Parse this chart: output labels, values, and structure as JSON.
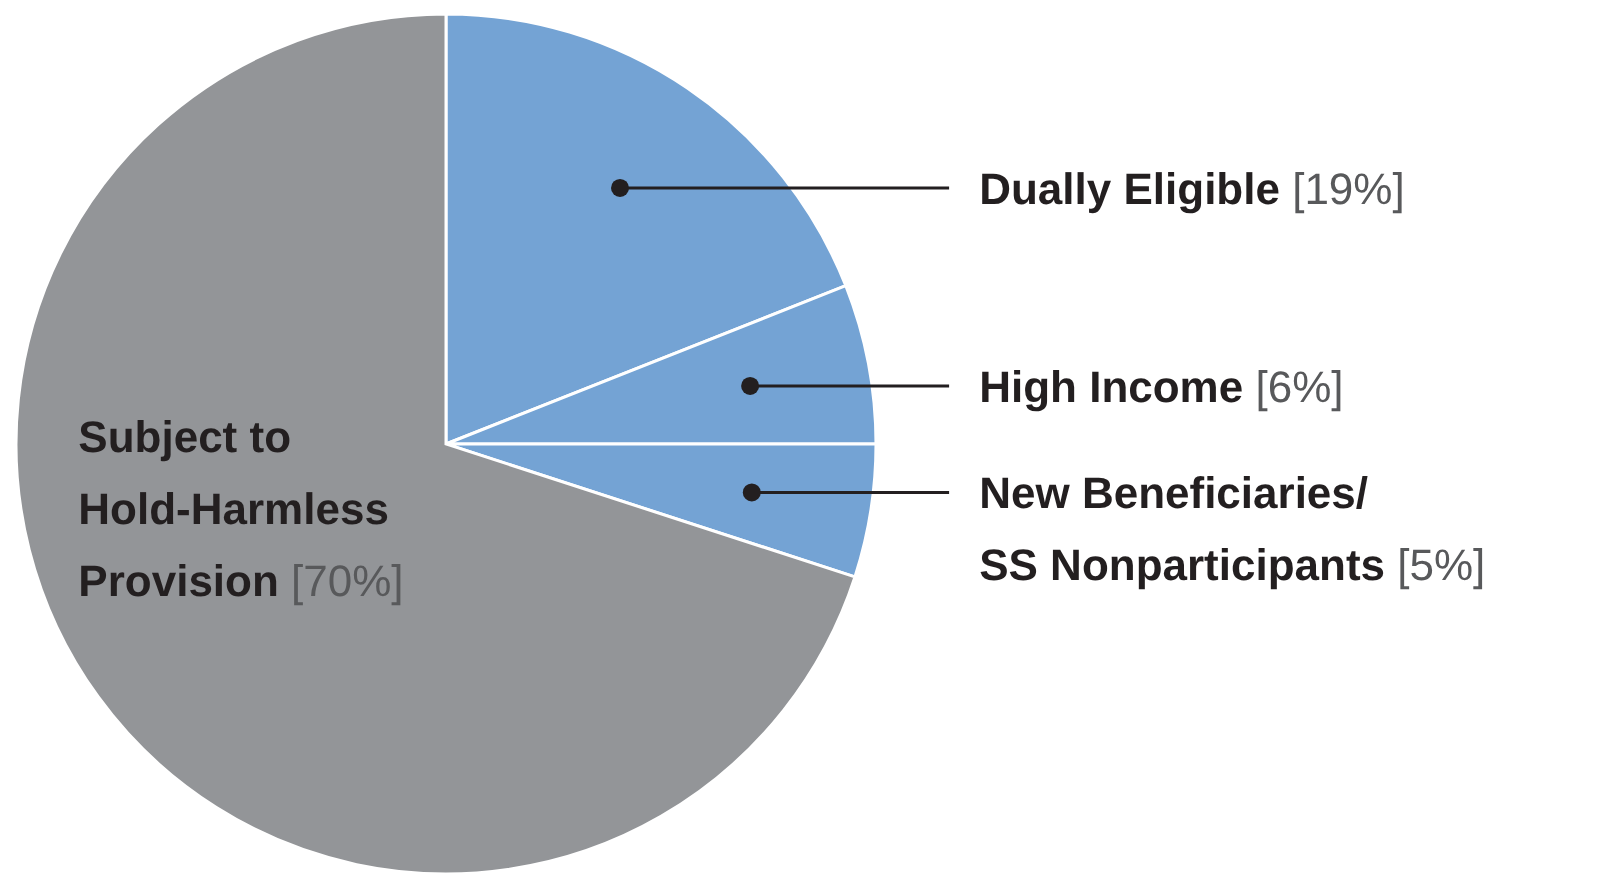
{
  "chart_data": {
    "type": "pie",
    "categories": [
      "Dually Eligible",
      "High Income",
      "New Beneficiaries/ SS Nonparticipants",
      "Subject to Hold-Harmless Provision"
    ],
    "values": [
      19,
      6,
      5,
      70
    ],
    "colors": [
      "#74a3d4",
      "#74a3d4",
      "#74a3d4",
      "#939598"
    ],
    "value_labels": [
      "[19%]",
      "[6%]",
      "[5%]",
      "[70%]"
    ],
    "legend": false
  }
}
